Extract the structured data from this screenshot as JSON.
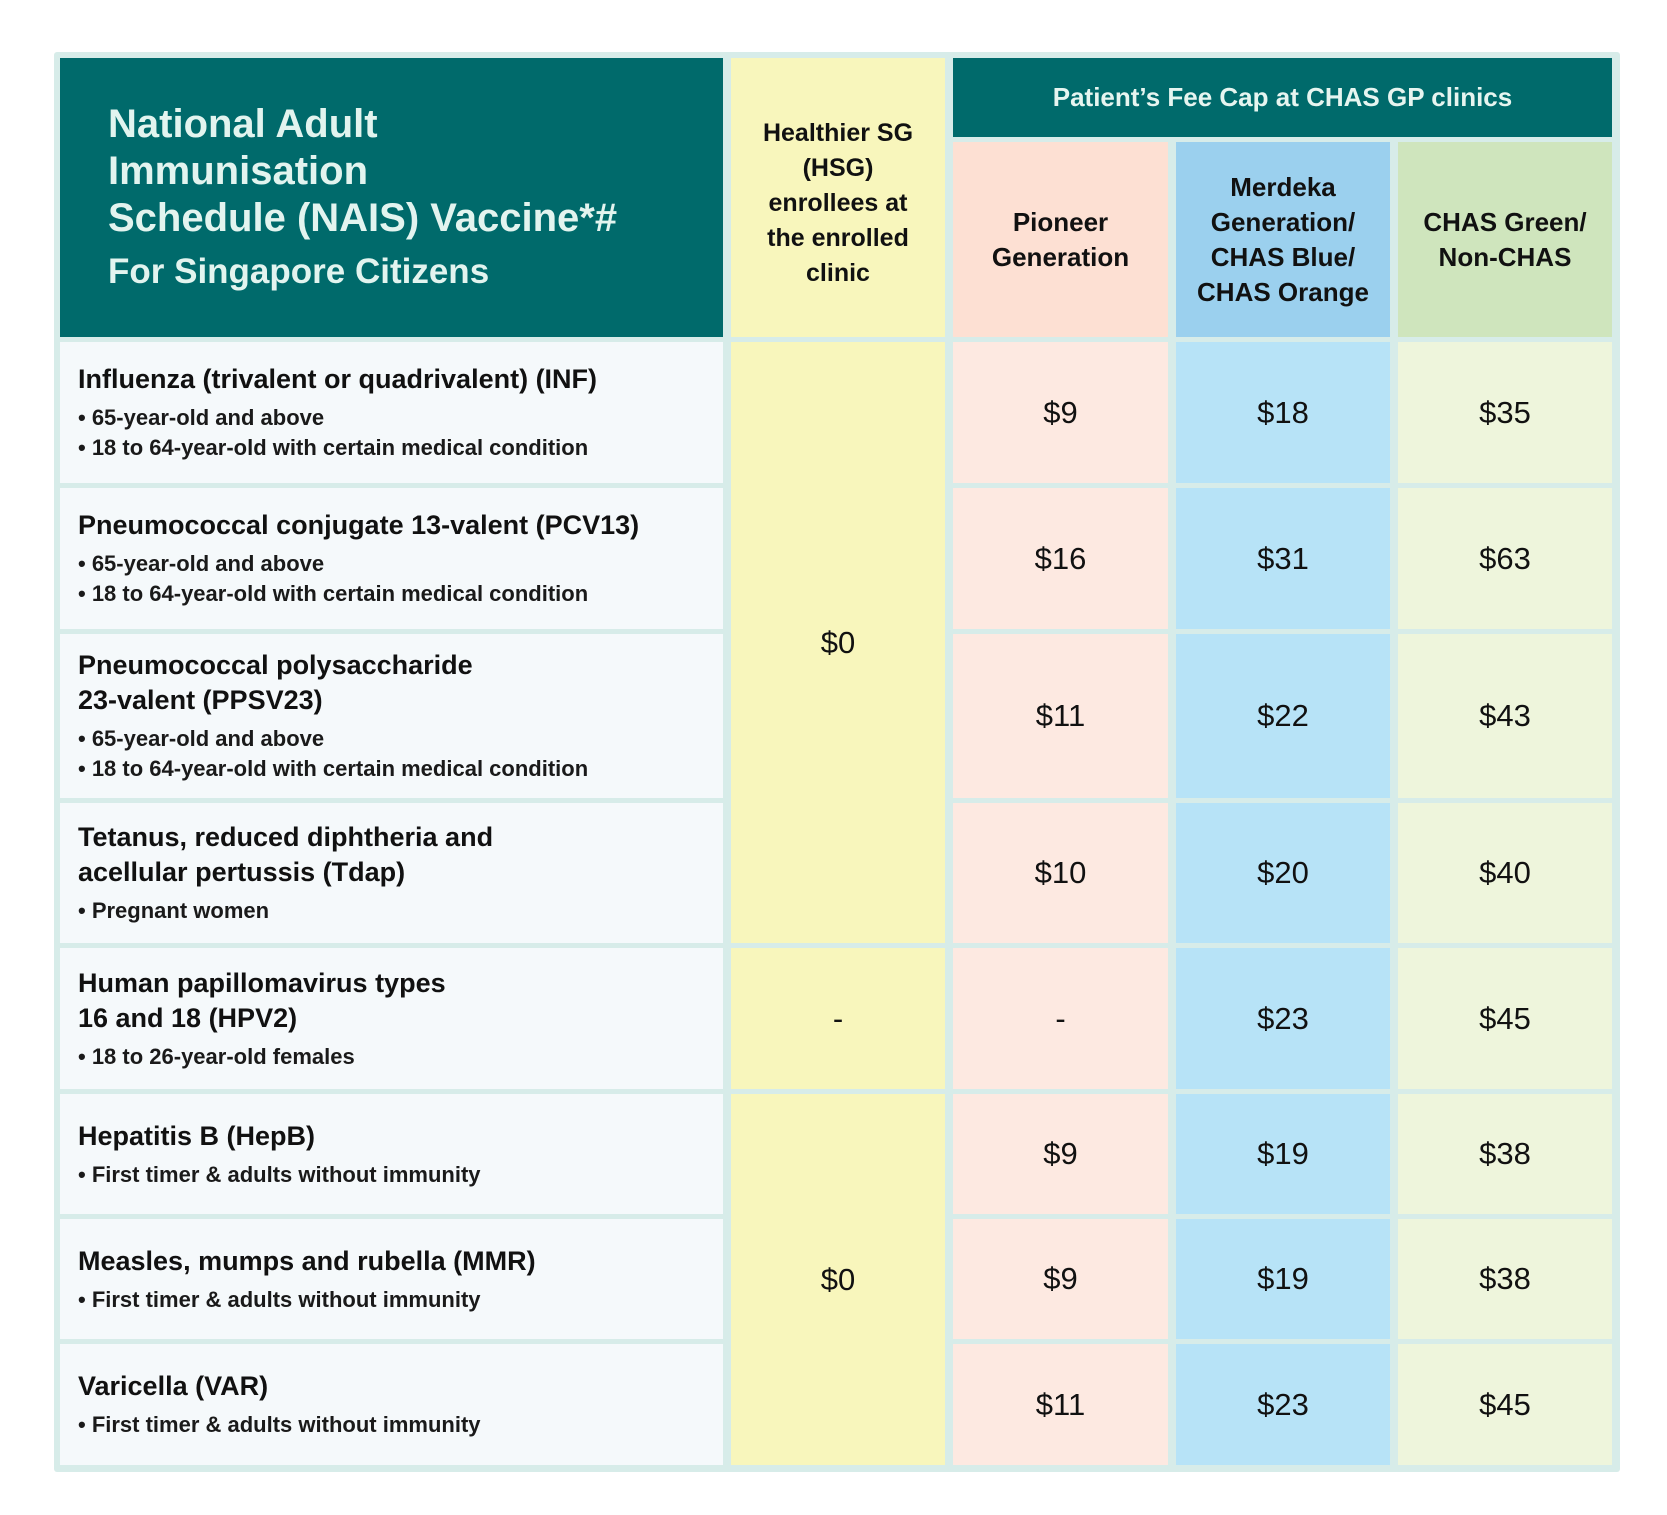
{
  "title": {
    "main": "National Adult\nImmunisation\nSchedule (NAIS) Vaccine*#",
    "sub": "For Singapore Citizens"
  },
  "headers": {
    "hsg": "Healthier SG\n(HSG)\nenrollees at\nthe enrolled\nclinic",
    "fee_cap": "Patient’s Fee Cap at CHAS GP clinics",
    "pioneer": "Pioneer\nGeneration",
    "merdeka": "Merdeka\nGeneration/\nCHAS Blue/\nCHAS Orange",
    "chas_green": "CHAS Green/\nNon-CHAS"
  },
  "hsg_values": [
    "$0",
    "-",
    "$0"
  ],
  "rows": [
    {
      "name": "Influenza (trivalent or quadrivalent) (INF)",
      "bullets": [
        "• 65-year-old and above",
        "• 18 to 64-year-old with certain medical condition"
      ],
      "pioneer": "$9",
      "merdeka": "$18",
      "chas_green": "$35"
    },
    {
      "name": "Pneumococcal conjugate 13-valent (PCV13)",
      "bullets": [
        "• 65-year-old and above",
        "• 18 to 64-year-old with certain medical condition"
      ],
      "pioneer": "$16",
      "merdeka": "$31",
      "chas_green": "$63"
    },
    {
      "name": "Pneumococcal polysaccharide\n23-valent (PPSV23)",
      "bullets": [
        "• 65-year-old and above",
        "• 18 to 64-year-old with certain medical condition"
      ],
      "pioneer": "$11",
      "merdeka": "$22",
      "chas_green": "$43"
    },
    {
      "name": "Tetanus, reduced diphtheria and\nacellular pertussis (Tdap)",
      "bullets": [
        "• Pregnant women"
      ],
      "pioneer": "$10",
      "merdeka": "$20",
      "chas_green": "$40"
    },
    {
      "name": "Human papillomavirus types\n16 and 18 (HPV2)",
      "bullets": [
        "• 18 to 26-year-old females"
      ],
      "pioneer": "-",
      "merdeka": "$23",
      "chas_green": "$45"
    },
    {
      "name": "Hepatitis B (HepB)",
      "bullets": [
        "• First timer & adults without immunity"
      ],
      "pioneer": "$9",
      "merdeka": "$19",
      "chas_green": "$38"
    },
    {
      "name": "Measles, mumps and rubella (MMR)",
      "bullets": [
        "• First timer & adults without immunity"
      ],
      "pioneer": "$9",
      "merdeka": "$19",
      "chas_green": "$38"
    },
    {
      "name": "Varicella (VAR)",
      "bullets": [
        "• First timer & adults without immunity"
      ],
      "pioneer": "$11",
      "merdeka": "$23",
      "chas_green": "$45"
    }
  ]
}
